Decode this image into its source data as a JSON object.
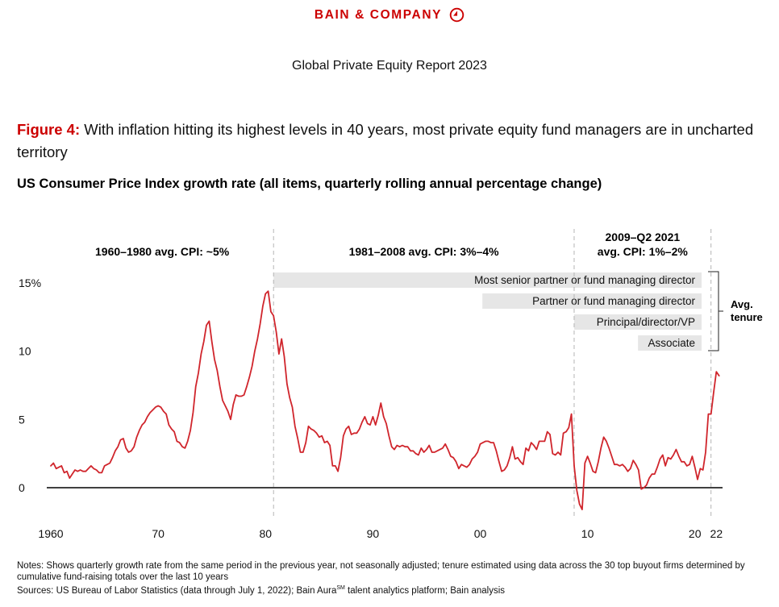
{
  "header": {
    "brand": "BAIN & COMPANY",
    "report_title": "Global Private Equity Report 2023"
  },
  "figure": {
    "label": "Figure 4:",
    "caption": " With inflation hitting its highest levels in 40 years, most private equity fund managers are in uncharted territory"
  },
  "colors": {
    "brand_red": "#cc0000",
    "line": "#d0252c",
    "band_fill": "#e6e6e6",
    "divider": "#b5b5b5"
  },
  "chart_data": {
    "type": "line",
    "title": "US Consumer Price Index growth rate (all items, quarterly rolling annual percentage change)",
    "xlabel": "",
    "ylabel": "",
    "xlim": [
      1960,
      2022.5
    ],
    "ylim": [
      -2,
      15
    ],
    "y_ticks": [
      {
        "value": 15,
        "label": "15%"
      },
      {
        "value": 10,
        "label": "10"
      },
      {
        "value": 5,
        "label": "5"
      },
      {
        "value": 0,
        "label": "0"
      }
    ],
    "x_ticks": [
      {
        "value": 1960,
        "label": "1960"
      },
      {
        "value": 1970,
        "label": "70"
      },
      {
        "value": 1980,
        "label": "80"
      },
      {
        "value": 1990,
        "label": "90"
      },
      {
        "value": 2000,
        "label": "00"
      },
      {
        "value": 2010,
        "label": "10"
      },
      {
        "value": 2020,
        "label": "20"
      },
      {
        "value": 2022,
        "label": "22"
      }
    ],
    "period_dividers": [
      1980.75,
      2008.75,
      2021.5
    ],
    "period_labels": [
      {
        "text": "1960–1980 avg. CPI: ~5%",
        "start": 1960,
        "end": 1980.75
      },
      {
        "text": "1981–2008 avg. CPI: 3%–4%",
        "start": 1980.75,
        "end": 2008.75
      },
      {
        "text": "2009–Q2 2021",
        "text2": "avg. CPI: 1%–2%",
        "start": 2008.75,
        "end": 2021.5
      }
    ],
    "tenure_bars": [
      {
        "label": "Most senior partner or fund managing director",
        "start_year": 1980.75
      },
      {
        "label": "Partner or fund managing director",
        "start_year": 2000.2
      },
      {
        "label": "Principal/director/VP",
        "start_year": 2008.75
      },
      {
        "label": "Associate",
        "start_year": 2014.7
      }
    ],
    "tenure_label": "Avg. tenure",
    "series": [
      {
        "name": "CPI growth rate",
        "points": [
          [
            1960.0,
            1.6
          ],
          [
            1960.25,
            1.8
          ],
          [
            1960.5,
            1.4
          ],
          [
            1960.75,
            1.5
          ],
          [
            1961.0,
            1.6
          ],
          [
            1961.25,
            1.1
          ],
          [
            1961.5,
            1.2
          ],
          [
            1961.75,
            0.7
          ],
          [
            1962.0,
            1.0
          ],
          [
            1962.25,
            1.3
          ],
          [
            1962.5,
            1.2
          ],
          [
            1962.75,
            1.3
          ],
          [
            1963.0,
            1.2
          ],
          [
            1963.25,
            1.2
          ],
          [
            1963.5,
            1.4
          ],
          [
            1963.75,
            1.6
          ],
          [
            1964.0,
            1.4
          ],
          [
            1964.25,
            1.3
          ],
          [
            1964.5,
            1.1
          ],
          [
            1964.75,
            1.1
          ],
          [
            1965.0,
            1.6
          ],
          [
            1965.25,
            1.7
          ],
          [
            1965.5,
            1.8
          ],
          [
            1965.75,
            2.2
          ],
          [
            1966.0,
            2.7
          ],
          [
            1966.25,
            3.0
          ],
          [
            1966.5,
            3.5
          ],
          [
            1966.75,
            3.6
          ],
          [
            1967.0,
            2.9
          ],
          [
            1967.25,
            2.6
          ],
          [
            1967.5,
            2.7
          ],
          [
            1967.75,
            3.0
          ],
          [
            1968.0,
            3.7
          ],
          [
            1968.25,
            4.2
          ],
          [
            1968.5,
            4.6
          ],
          [
            1968.75,
            4.8
          ],
          [
            1969.0,
            5.2
          ],
          [
            1969.25,
            5.5
          ],
          [
            1969.5,
            5.7
          ],
          [
            1969.75,
            5.9
          ],
          [
            1970.0,
            6.0
          ],
          [
            1970.25,
            5.9
          ],
          [
            1970.5,
            5.6
          ],
          [
            1970.75,
            5.4
          ],
          [
            1971.0,
            4.6
          ],
          [
            1971.25,
            4.3
          ],
          [
            1971.5,
            4.1
          ],
          [
            1971.75,
            3.4
          ],
          [
            1972.0,
            3.3
          ],
          [
            1972.25,
            3.0
          ],
          [
            1972.5,
            2.9
          ],
          [
            1972.75,
            3.4
          ],
          [
            1973.0,
            4.2
          ],
          [
            1973.25,
            5.5
          ],
          [
            1973.5,
            7.4
          ],
          [
            1973.75,
            8.4
          ],
          [
            1974.0,
            9.8
          ],
          [
            1974.25,
            10.7
          ],
          [
            1974.5,
            11.9
          ],
          [
            1974.75,
            12.2
          ],
          [
            1975.0,
            10.7
          ],
          [
            1975.25,
            9.4
          ],
          [
            1975.5,
            8.6
          ],
          [
            1975.75,
            7.4
          ],
          [
            1976.0,
            6.4
          ],
          [
            1976.25,
            6.0
          ],
          [
            1976.5,
            5.6
          ],
          [
            1976.75,
            5.0
          ],
          [
            1977.0,
            6.1
          ],
          [
            1977.25,
            6.8
          ],
          [
            1977.5,
            6.7
          ],
          [
            1977.75,
            6.7
          ],
          [
            1978.0,
            6.8
          ],
          [
            1978.25,
            7.4
          ],
          [
            1978.5,
            8.1
          ],
          [
            1978.75,
            8.9
          ],
          [
            1979.0,
            10.0
          ],
          [
            1979.25,
            10.9
          ],
          [
            1979.5,
            12.0
          ],
          [
            1979.75,
            13.3
          ],
          [
            1980.0,
            14.2
          ],
          [
            1980.25,
            14.4
          ],
          [
            1980.5,
            12.9
          ],
          [
            1980.75,
            12.6
          ],
          [
            1981.0,
            11.4
          ],
          [
            1981.25,
            9.8
          ],
          [
            1981.5,
            10.9
          ],
          [
            1981.75,
            9.6
          ],
          [
            1982.0,
            7.6
          ],
          [
            1982.25,
            6.6
          ],
          [
            1982.5,
            5.9
          ],
          [
            1982.75,
            4.5
          ],
          [
            1983.0,
            3.6
          ],
          [
            1983.25,
            2.6
          ],
          [
            1983.5,
            2.6
          ],
          [
            1983.75,
            3.3
          ],
          [
            1984.0,
            4.5
          ],
          [
            1984.25,
            4.3
          ],
          [
            1984.5,
            4.2
          ],
          [
            1984.75,
            4.0
          ],
          [
            1985.0,
            3.7
          ],
          [
            1985.25,
            3.8
          ],
          [
            1985.5,
            3.3
          ],
          [
            1985.75,
            3.4
          ],
          [
            1986.0,
            3.1
          ],
          [
            1986.25,
            1.6
          ],
          [
            1986.5,
            1.6
          ],
          [
            1986.75,
            1.2
          ],
          [
            1987.0,
            2.2
          ],
          [
            1987.25,
            3.8
          ],
          [
            1987.5,
            4.3
          ],
          [
            1987.75,
            4.5
          ],
          [
            1988.0,
            3.9
          ],
          [
            1988.25,
            4.0
          ],
          [
            1988.5,
            4.0
          ],
          [
            1988.75,
            4.3
          ],
          [
            1989.0,
            4.8
          ],
          [
            1989.25,
            5.2
          ],
          [
            1989.5,
            4.7
          ],
          [
            1989.75,
            4.6
          ],
          [
            1990.0,
            5.2
          ],
          [
            1990.25,
            4.6
          ],
          [
            1990.5,
            5.3
          ],
          [
            1990.75,
            6.2
          ],
          [
            1991.0,
            5.2
          ],
          [
            1991.25,
            4.7
          ],
          [
            1991.5,
            3.8
          ],
          [
            1991.75,
            3.0
          ],
          [
            1992.0,
            2.8
          ],
          [
            1992.25,
            3.1
          ],
          [
            1992.5,
            3.0
          ],
          [
            1992.75,
            3.1
          ],
          [
            1993.0,
            3.0
          ],
          [
            1993.25,
            3.0
          ],
          [
            1993.5,
            2.7
          ],
          [
            1993.75,
            2.7
          ],
          [
            1994.0,
            2.5
          ],
          [
            1994.25,
            2.4
          ],
          [
            1994.5,
            2.9
          ],
          [
            1994.75,
            2.6
          ],
          [
            1995.0,
            2.8
          ],
          [
            1995.25,
            3.1
          ],
          [
            1995.5,
            2.6
          ],
          [
            1995.75,
            2.6
          ],
          [
            1996.0,
            2.7
          ],
          [
            1996.25,
            2.8
          ],
          [
            1996.5,
            2.9
          ],
          [
            1996.75,
            3.2
          ],
          [
            1997.0,
            2.8
          ],
          [
            1997.25,
            2.3
          ],
          [
            1997.5,
            2.2
          ],
          [
            1997.75,
            1.9
          ],
          [
            1998.0,
            1.4
          ],
          [
            1998.25,
            1.7
          ],
          [
            1998.5,
            1.6
          ],
          [
            1998.75,
            1.5
          ],
          [
            1999.0,
            1.7
          ],
          [
            1999.25,
            2.1
          ],
          [
            1999.5,
            2.3
          ],
          [
            1999.75,
            2.6
          ],
          [
            2000.0,
            3.2
          ],
          [
            2000.25,
            3.3
          ],
          [
            2000.5,
            3.4
          ],
          [
            2000.75,
            3.4
          ],
          [
            2001.0,
            3.3
          ],
          [
            2001.25,
            3.3
          ],
          [
            2001.5,
            2.7
          ],
          [
            2001.75,
            1.9
          ],
          [
            2002.0,
            1.2
          ],
          [
            2002.25,
            1.3
          ],
          [
            2002.5,
            1.6
          ],
          [
            2002.75,
            2.2
          ],
          [
            2003.0,
            3.0
          ],
          [
            2003.25,
            2.1
          ],
          [
            2003.5,
            2.2
          ],
          [
            2003.75,
            1.9
          ],
          [
            2004.0,
            1.7
          ],
          [
            2004.25,
            2.9
          ],
          [
            2004.5,
            2.7
          ],
          [
            2004.75,
            3.3
          ],
          [
            2005.0,
            3.1
          ],
          [
            2005.25,
            2.8
          ],
          [
            2005.5,
            3.4
          ],
          [
            2005.75,
            3.4
          ],
          [
            2006.0,
            3.4
          ],
          [
            2006.25,
            4.1
          ],
          [
            2006.5,
            3.9
          ],
          [
            2006.75,
            2.5
          ],
          [
            2007.0,
            2.4
          ],
          [
            2007.25,
            2.6
          ],
          [
            2007.5,
            2.4
          ],
          [
            2007.75,
            4.0
          ],
          [
            2008.0,
            4.1
          ],
          [
            2008.25,
            4.4
          ],
          [
            2008.5,
            5.4
          ],
          [
            2008.75,
            1.6
          ],
          [
            2009.0,
            -0.2
          ],
          [
            2009.25,
            -1.2
          ],
          [
            2009.5,
            -1.6
          ],
          [
            2009.75,
            1.8
          ],
          [
            2010.0,
            2.3
          ],
          [
            2010.25,
            1.8
          ],
          [
            2010.5,
            1.2
          ],
          [
            2010.75,
            1.1
          ],
          [
            2011.0,
            1.9
          ],
          [
            2011.25,
            2.9
          ],
          [
            2011.5,
            3.7
          ],
          [
            2011.75,
            3.4
          ],
          [
            2012.0,
            2.9
          ],
          [
            2012.25,
            2.3
          ],
          [
            2012.5,
            1.7
          ],
          [
            2012.75,
            1.7
          ],
          [
            2013.0,
            1.6
          ],
          [
            2013.25,
            1.7
          ],
          [
            2013.5,
            1.5
          ],
          [
            2013.75,
            1.2
          ],
          [
            2014.0,
            1.4
          ],
          [
            2014.25,
            2.0
          ],
          [
            2014.5,
            1.7
          ],
          [
            2014.75,
            1.3
          ],
          [
            2015.0,
            -0.1
          ],
          [
            2015.25,
            0.0
          ],
          [
            2015.5,
            0.2
          ],
          [
            2015.75,
            0.7
          ],
          [
            2016.0,
            1.0
          ],
          [
            2016.25,
            1.0
          ],
          [
            2016.5,
            1.5
          ],
          [
            2016.75,
            2.1
          ],
          [
            2017.0,
            2.4
          ],
          [
            2017.25,
            1.6
          ],
          [
            2017.5,
            2.2
          ],
          [
            2017.75,
            2.1
          ],
          [
            2018.0,
            2.4
          ],
          [
            2018.25,
            2.8
          ],
          [
            2018.5,
            2.3
          ],
          [
            2018.75,
            1.9
          ],
          [
            2019.0,
            1.9
          ],
          [
            2019.25,
            1.6
          ],
          [
            2019.5,
            1.7
          ],
          [
            2019.75,
            2.3
          ],
          [
            2020.0,
            1.5
          ],
          [
            2020.25,
            0.6
          ],
          [
            2020.5,
            1.4
          ],
          [
            2020.75,
            1.3
          ],
          [
            2021.0,
            2.6
          ],
          [
            2021.25,
            5.4
          ],
          [
            2021.5,
            5.4
          ],
          [
            2021.75,
            7.0
          ],
          [
            2022.0,
            8.5
          ],
          [
            2022.25,
            8.2
          ]
        ]
      }
    ]
  },
  "notes": {
    "line1": "Notes: Shows quarterly growth rate from the same period in the previous year, not seasonally adjusted; tenure estimated using data across the 30 top buyout firms determined by cumulative fund-raising totals over the last 10 years",
    "sources_prefix": "Sources: US Bureau of Labor Statistics (data through July 1, 2022); Bain Aura",
    "sources_sup": "SM",
    "sources_suffix": " talent analytics platform; Bain analysis"
  }
}
